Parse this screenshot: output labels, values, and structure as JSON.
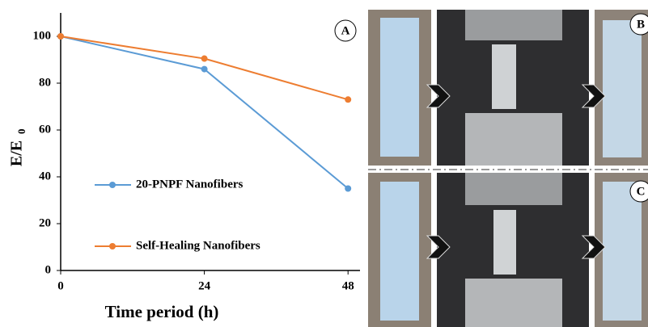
{
  "chart_data": {
    "type": "line",
    "panel_label": "A",
    "ylabel": "E/E",
    "ylabel_subscript": "0",
    "xlabel": "Time period  (h)",
    "x": [
      0,
      24,
      48
    ],
    "series": [
      {
        "name": "20-PNPF Nanofibers",
        "color": "#5b9bd5",
        "values": [
          100,
          86,
          35
        ]
      },
      {
        "name": "Self-Healing Nanofibers",
        "color": "#ed7d31",
        "values": [
          100,
          90.5,
          73
        ]
      }
    ],
    "xlim": [
      0,
      50
    ],
    "xticks": [
      0,
      24,
      48
    ],
    "ylim": [
      0,
      110
    ],
    "yticks": [
      0,
      20,
      40,
      60,
      80,
      100
    ],
    "legend": "left"
  },
  "photo_labels": [
    "B",
    "C"
  ]
}
